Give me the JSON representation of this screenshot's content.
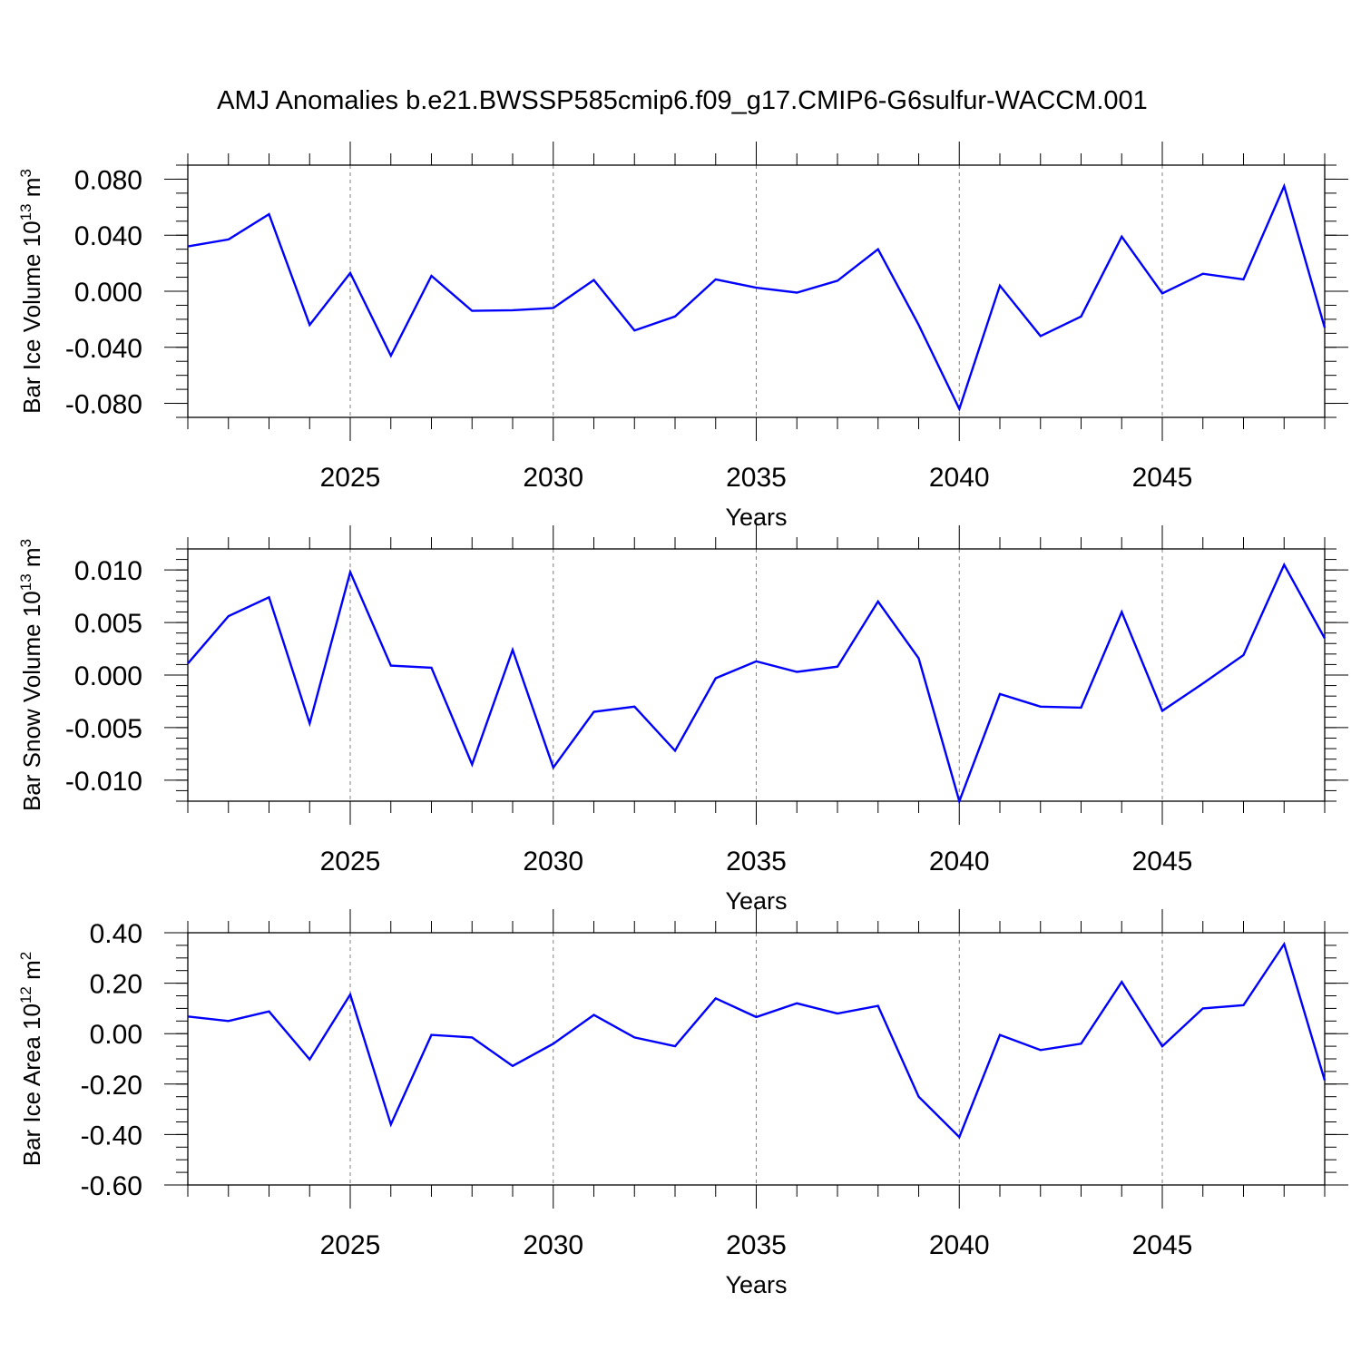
{
  "title": "AMJ Anomalies b.e21.BWSSP585cmip6.f09_g17.CMIP6-G6sulfur-WACCM.001",
  "colors": {
    "line": "#0000ff",
    "axis": "#000000",
    "grid": "#808080"
  },
  "chart_data": [
    {
      "type": "line",
      "name": "ice-volume",
      "ylabel": {
        "prefix": "Bar Ice Volume 10",
        "sup": "13",
        "unit": " m",
        "unitSup": "3"
      },
      "xlabel": "Years",
      "xlim": [
        2021,
        2049
      ],
      "ylim": [
        -0.09,
        0.09
      ],
      "yticks": [
        -0.08,
        -0.04,
        0.0,
        0.04,
        0.08
      ],
      "ytick_labels": [
        "-0.080",
        "-0.040",
        "0.000",
        "0.040",
        "0.080"
      ],
      "yminor_step": 0.01,
      "xticks": [
        2025,
        2030,
        2035,
        2040,
        2045
      ],
      "xtick_labels": [
        "2025",
        "2030",
        "2035",
        "2040",
        "2045"
      ],
      "x": [
        2021,
        2022,
        2023,
        2024,
        2025,
        2026,
        2027,
        2028,
        2029,
        2030,
        2031,
        2032,
        2033,
        2034,
        2035,
        2036,
        2037,
        2038,
        2039,
        2040,
        2041,
        2042,
        2043,
        2044,
        2045,
        2046,
        2047,
        2048,
        2049
      ],
      "y": [
        0.032,
        0.037,
        0.055,
        -0.024,
        0.013,
        -0.046,
        0.011,
        -0.014,
        -0.0135,
        -0.012,
        0.008,
        -0.028,
        -0.018,
        0.0085,
        0.0025,
        -0.001,
        0.0075,
        0.03,
        -0.024,
        -0.084,
        0.004,
        -0.032,
        -0.018,
        0.039,
        -0.0015,
        0.0125,
        0.0085,
        0.075,
        -0.026
      ]
    },
    {
      "type": "line",
      "name": "snow-volume",
      "ylabel": {
        "prefix": "Bar Snow Volume 10",
        "sup": "13",
        "unit": " m",
        "unitSup": "3"
      },
      "xlabel": "Years",
      "xlim": [
        2021,
        2049
      ],
      "ylim": [
        -0.012,
        0.012
      ],
      "yticks": [
        -0.01,
        -0.005,
        0.0,
        0.005,
        0.01
      ],
      "ytick_labels": [
        "-0.010",
        "-0.005",
        "0.000",
        "0.005",
        "0.010"
      ],
      "yminor_step": 0.001,
      "xticks": [
        2025,
        2030,
        2035,
        2040,
        2045
      ],
      "xtick_labels": [
        "2025",
        "2030",
        "2035",
        "2040",
        "2045"
      ],
      "x": [
        2021,
        2022,
        2023,
        2024,
        2025,
        2026,
        2027,
        2028,
        2029,
        2030,
        2031,
        2032,
        2033,
        2034,
        2035,
        2036,
        2037,
        2038,
        2039,
        2040,
        2041,
        2042,
        2043,
        2044,
        2045,
        2046,
        2047,
        2048,
        2049
      ],
      "y": [
        0.0011,
        0.0056,
        0.0074,
        -0.0046,
        0.0098,
        0.0009,
        0.0007,
        -0.0085,
        0.0024,
        -0.0088,
        -0.0035,
        -0.003,
        -0.0072,
        -0.0003,
        0.0013,
        0.0003,
        0.0008,
        0.007,
        0.0016,
        -0.012,
        -0.0018,
        -0.003,
        -0.0031,
        0.006,
        -0.0034,
        -0.0008,
        0.0019,
        0.0105,
        0.0035
      ]
    },
    {
      "type": "line",
      "name": "ice-area",
      "ylabel": {
        "prefix": "Bar Ice Area 10",
        "sup": "12",
        "unit": " m",
        "unitSup": "2"
      },
      "xlabel": "Years",
      "xlim": [
        2021,
        2049
      ],
      "ylim": [
        -0.6,
        0.4
      ],
      "yticks": [
        -0.6,
        -0.4,
        -0.2,
        0.0,
        0.2,
        0.4
      ],
      "ytick_labels": [
        "-0.60",
        "-0.40",
        "-0.20",
        "0.00",
        "0.20",
        "0.40"
      ],
      "yminor_step": 0.05,
      "xticks": [
        2025,
        2030,
        2035,
        2040,
        2045
      ],
      "xtick_labels": [
        "2025",
        "2030",
        "2035",
        "2040",
        "2045"
      ],
      "x": [
        2021,
        2022,
        2023,
        2024,
        2025,
        2026,
        2027,
        2028,
        2029,
        2030,
        2031,
        2032,
        2033,
        2034,
        2035,
        2036,
        2037,
        2038,
        2039,
        2040,
        2041,
        2042,
        2043,
        2044,
        2045,
        2046,
        2047,
        2048,
        2049
      ],
      "y": [
        0.068,
        0.05,
        0.088,
        -0.102,
        0.155,
        -0.36,
        -0.005,
        -0.015,
        -0.128,
        -0.04,
        0.074,
        -0.015,
        -0.05,
        0.14,
        0.066,
        0.12,
        0.08,
        0.11,
        -0.25,
        -0.41,
        -0.005,
        -0.065,
        -0.04,
        0.205,
        -0.05,
        0.1,
        0.113,
        0.355,
        -0.185
      ]
    }
  ]
}
